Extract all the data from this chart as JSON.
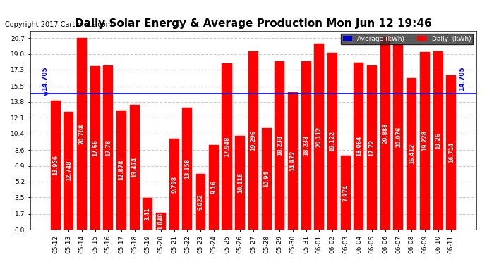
{
  "title": "Daily Solar Energy & Average Production Mon Jun 12 19:46",
  "copyright": "Copyright 2017 Cartronics.com",
  "average_label": "Average (kWh)",
  "daily_label": "Daily  (kWh)",
  "average_value": 14.705,
  "categories": [
    "05-12",
    "05-13",
    "05-14",
    "05-15",
    "05-16",
    "05-17",
    "05-18",
    "05-19",
    "05-20",
    "05-21",
    "05-22",
    "05-23",
    "05-24",
    "05-25",
    "05-26",
    "05-27",
    "05-28",
    "05-29",
    "05-30",
    "05-31",
    "06-01",
    "06-02",
    "06-03",
    "06-04",
    "06-05",
    "06-06",
    "06-07",
    "06-08",
    "06-09",
    "06-10",
    "06-11"
  ],
  "values": [
    13.956,
    12.748,
    20.708,
    17.66,
    17.76,
    12.878,
    13.474,
    3.41,
    1.848,
    9.798,
    13.158,
    6.022,
    9.16,
    17.948,
    10.116,
    19.296,
    10.94,
    18.238,
    14.872,
    18.238,
    20.112,
    19.122,
    7.974,
    18.064,
    17.72,
    20.888,
    20.076,
    16.412,
    19.228,
    19.26,
    16.714
  ],
  "bar_color": "#ff0000",
  "bar_edge_color": "#ff0000",
  "avg_line_color": "#0000ff",
  "avg_text_color": "#0000ff",
  "background_color": "#ffffff",
  "plot_bg_color": "#ffffff",
  "grid_color": "#cccccc",
  "title_fontsize": 11,
  "copyright_fontsize": 7,
  "tick_fontsize": 6.5,
  "value_fontsize": 5.5,
  "yticks": [
    0.0,
    1.7,
    3.5,
    5.2,
    6.9,
    8.6,
    10.4,
    12.1,
    13.8,
    15.5,
    17.3,
    19.0,
    20.7
  ],
  "ylim": [
    0,
    21.5
  ],
  "legend_avg_color": "#0000cd",
  "legend_daily_color": "#ff0000"
}
